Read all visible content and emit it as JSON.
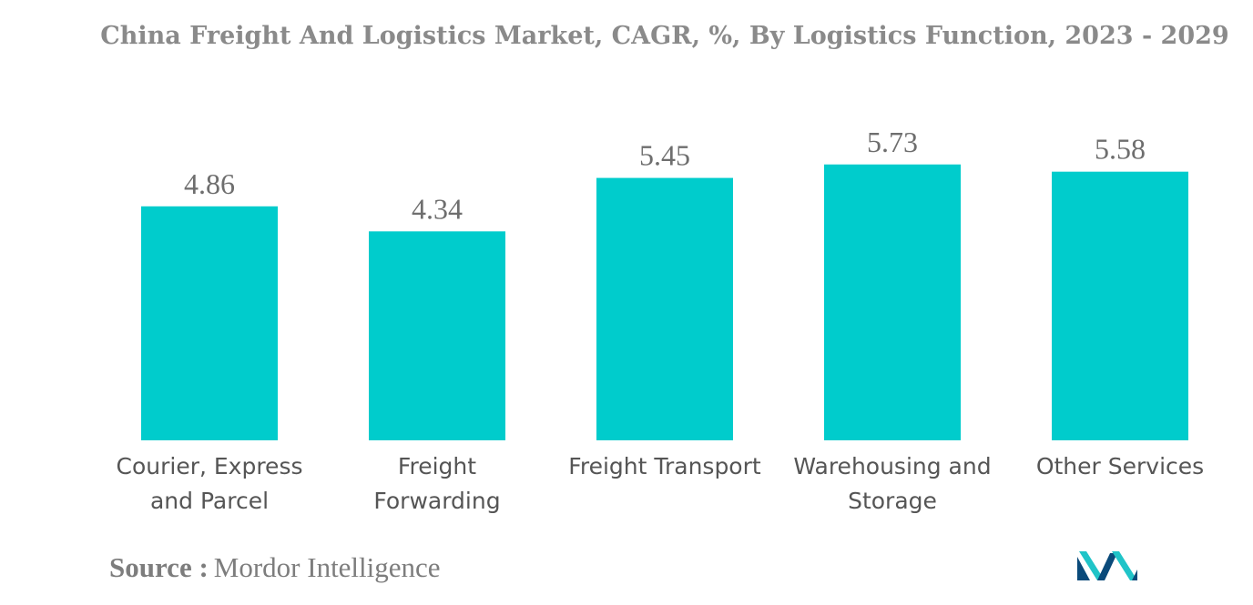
{
  "chart_data": {
    "type": "bar",
    "title": "China Freight And Logistics Market, CAGR, %, By Logistics Function, 2023 - 2029",
    "categories": [
      [
        "Courier, Express",
        "and Parcel"
      ],
      [
        "Freight",
        "Forwarding"
      ],
      [
        "Freight Transport"
      ],
      [
        "Warehousing and",
        "Storage"
      ],
      [
        "Other Services"
      ]
    ],
    "values": [
      4.86,
      4.34,
      5.45,
      5.73,
      5.58
    ],
    "data_labels": [
      "4.86",
      "4.34",
      "5.45",
      "5.73",
      "5.58"
    ],
    "xlabel": "",
    "ylabel": "",
    "ylim": [
      0,
      6.5
    ],
    "grid": false,
    "legend": "none",
    "bar_color": "#00cccc"
  },
  "source": {
    "label": "Source :",
    "value": "Mordor Intelligence"
  },
  "colors": {
    "title": "#8a8a8a",
    "data_label": "#6e6e6e",
    "category_label": "#555555",
    "logo": "#0a4a7a",
    "logo_accent": "#20c4c8"
  }
}
